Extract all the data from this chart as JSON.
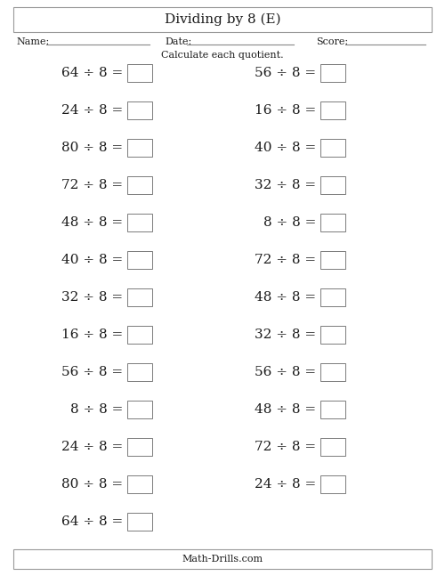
{
  "title": "Dividing by 8 (E)",
  "name_label": "Name:",
  "date_label": "Date:",
  "score_label": "Score:",
  "instruction": "Calculate each quotient.",
  "footer": "Math-Drills.com",
  "left_problems": [
    "64 ÷ 8 =",
    "24 ÷ 8 =",
    "80 ÷ 8 =",
    "72 ÷ 8 =",
    "48 ÷ 8 =",
    "40 ÷ 8 =",
    "32 ÷ 8 =",
    "16 ÷ 8 =",
    "56 ÷ 8 =",
    "8 ÷ 8 =",
    "24 ÷ 8 =",
    "80 ÷ 8 =",
    "64 ÷ 8 ="
  ],
  "right_problems": [
    "56 ÷ 8 =",
    "16 ÷ 8 =",
    "40 ÷ 8 =",
    "32 ÷ 8 =",
    "8 ÷ 8 =",
    "72 ÷ 8 =",
    "48 ÷ 8 =",
    "32 ÷ 8 =",
    "56 ÷ 8 =",
    "48 ÷ 8 =",
    "72 ÷ 8 =",
    "24 ÷ 8 ="
  ],
  "bg_color": "#ffffff",
  "text_color": "#1a1a1a",
  "font_size_title": 11,
  "font_size_problem": 11,
  "font_size_header": 8,
  "font_size_instruction": 8,
  "font_size_footer": 8,
  "fig_width": 5.0,
  "fig_height": 6.47,
  "dpi": 100
}
